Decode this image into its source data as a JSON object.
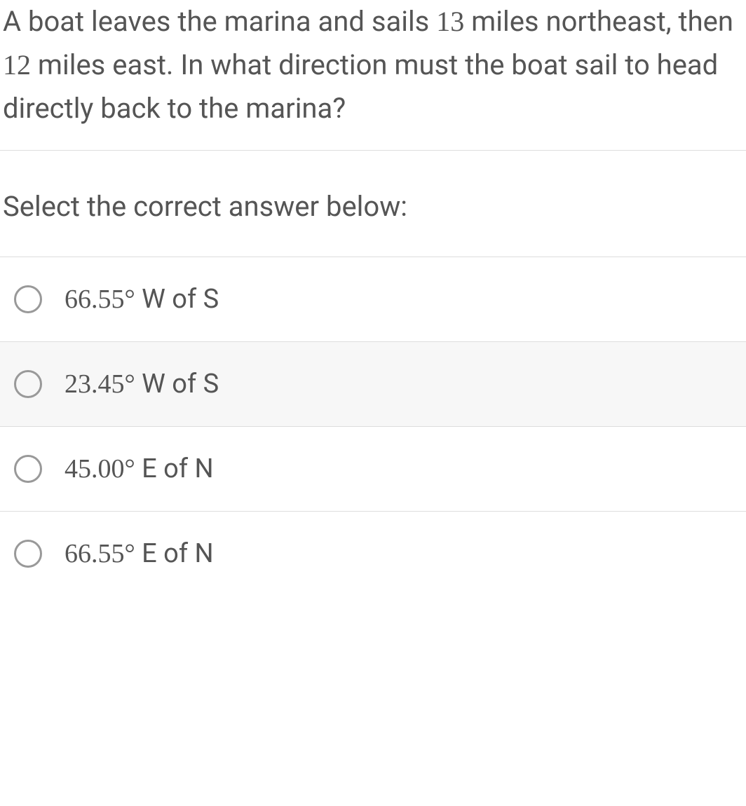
{
  "question": {
    "part1": "A boat leaves the marina and sails ",
    "num1": "13",
    "part2": " miles northeast, then ",
    "num2": "12",
    "part3": " miles east. In what direction must the boat sail to head directly back to the marina?"
  },
  "prompt": "Select the correct answer below:",
  "options": [
    {
      "value": "66.55°",
      "direction": " W of S",
      "highlighted": false
    },
    {
      "value": "23.45°",
      "direction": " W of S",
      "highlighted": true
    },
    {
      "value": "45.00°",
      "direction": " E of N",
      "highlighted": false
    },
    {
      "value": "66.55°",
      "direction": " E of N",
      "highlighted": false
    }
  ],
  "colors": {
    "text": "#555555",
    "border": "#dddddd",
    "radio_border": "#999999",
    "highlight_bg": "#f7f7f7",
    "background": "#ffffff"
  }
}
